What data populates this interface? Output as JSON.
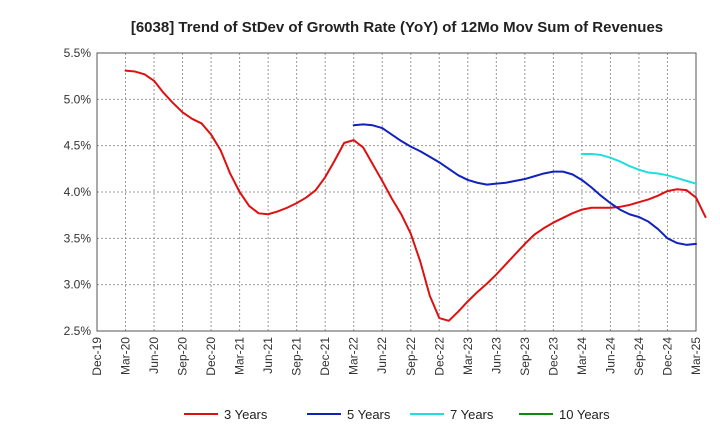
{
  "chart_data": {
    "type": "line",
    "title": "[6038]  Trend of StDev of Growth Rate (YoY) of 12Mo Mov Sum of Revenues",
    "xlabel": "",
    "ylabel": "",
    "ylim": [
      2.5,
      5.5
    ],
    "yticks": [
      "2.5%",
      "3.0%",
      "3.5%",
      "4.0%",
      "4.5%",
      "5.0%",
      "5.5%"
    ],
    "ytick_values": [
      2.5,
      3.0,
      3.5,
      4.0,
      4.5,
      5.0,
      5.5
    ],
    "xticks": [
      "Dec-19",
      "Mar-20",
      "Jun-20",
      "Sep-20",
      "Dec-20",
      "Mar-21",
      "Jun-21",
      "Sep-21",
      "Dec-21",
      "Mar-22",
      "Jun-22",
      "Sep-22",
      "Dec-22",
      "Mar-23",
      "Jun-23",
      "Sep-23",
      "Dec-23",
      "Mar-24",
      "Jun-24",
      "Sep-24",
      "Dec-24",
      "Mar-25"
    ],
    "x_month_range": [
      0,
      63
    ],
    "grid": true,
    "legend_position": "bottom",
    "series": [
      {
        "name": "3 Years",
        "color": "#dd1111",
        "x_start_month": 3,
        "values": [
          5.31,
          5.3,
          5.27,
          5.2,
          5.07,
          4.96,
          4.86,
          4.79,
          4.74,
          4.62,
          4.45,
          4.2,
          4.0,
          3.85,
          3.77,
          3.76,
          3.79,
          3.83,
          3.88,
          3.94,
          4.02,
          4.16,
          4.34,
          4.53,
          4.56,
          4.48,
          4.3,
          4.12,
          3.93,
          3.76,
          3.55,
          3.25,
          2.88,
          2.64,
          2.61,
          2.71,
          2.82,
          2.92,
          3.01,
          3.11,
          3.22,
          3.33,
          3.44,
          3.54,
          3.61,
          3.67,
          3.72,
          3.77,
          3.81,
          3.83,
          3.83,
          3.83,
          3.84,
          3.86,
          3.89,
          3.92,
          3.96,
          4.01,
          4.03,
          4.02,
          3.94,
          3.73
        ]
      },
      {
        "name": "5 Years",
        "color": "#1122bb",
        "x_start_month": 27,
        "values": [
          4.72,
          4.73,
          4.72,
          4.69,
          4.62,
          4.55,
          4.49,
          4.44,
          4.38,
          4.32,
          4.25,
          4.18,
          4.13,
          4.1,
          4.08,
          4.09,
          4.1,
          4.12,
          4.14,
          4.17,
          4.2,
          4.22,
          4.22,
          4.19,
          4.13,
          4.05,
          3.96,
          3.88,
          3.81,
          3.76,
          3.73,
          3.68,
          3.6,
          3.5,
          3.45,
          3.43,
          3.44
        ]
      },
      {
        "name": "7 Years",
        "color": "#22dddd",
        "x_start_month": 51,
        "values": [
          4.41,
          4.41,
          4.4,
          4.37,
          4.33,
          4.28,
          4.24,
          4.21,
          4.2,
          4.18,
          4.15,
          4.12,
          4.09
        ]
      },
      {
        "name": "10 Years",
        "color": "#118811",
        "x_start_month": 63,
        "values": []
      }
    ]
  }
}
